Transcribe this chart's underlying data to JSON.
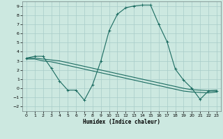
{
  "xlabel": "Humidex (Indice chaleur)",
  "background_color": "#cce8e0",
  "grid_color": "#a8ccc8",
  "line_color": "#1a6b60",
  "xlim": [
    -0.5,
    23.5
  ],
  "ylim": [
    -2.5,
    9.5
  ],
  "xticks": [
    0,
    1,
    2,
    3,
    4,
    5,
    6,
    7,
    8,
    9,
    10,
    11,
    12,
    13,
    14,
    15,
    16,
    17,
    18,
    19,
    20,
    21,
    22,
    23
  ],
  "yticks": [
    -2,
    -1,
    0,
    1,
    2,
    3,
    4,
    5,
    6,
    7,
    8,
    9
  ],
  "line1_x": [
    0,
    1,
    2,
    3,
    4,
    5,
    6,
    7,
    8,
    9,
    10,
    11,
    12,
    13,
    14,
    15,
    16,
    17,
    18,
    19,
    20,
    21,
    22,
    23
  ],
  "line1_y": [
    3.3,
    3.5,
    3.5,
    2.2,
    0.8,
    -0.2,
    -0.2,
    -1.3,
    0.4,
    3.0,
    6.3,
    8.1,
    8.8,
    9.0,
    9.1,
    9.1,
    7.0,
    5.1,
    2.1,
    0.9,
    0.0,
    -1.2,
    -0.3,
    -0.3
  ],
  "line2_x": [
    0,
    1,
    2,
    3,
    4,
    5,
    6,
    7,
    8,
    9,
    10,
    11,
    12,
    13,
    14,
    15,
    16,
    17,
    18,
    19,
    20,
    21,
    22,
    23
  ],
  "line2_y": [
    3.3,
    3.3,
    3.2,
    3.1,
    3.0,
    2.8,
    2.6,
    2.4,
    2.2,
    2.0,
    1.8,
    1.6,
    1.4,
    1.2,
    1.0,
    0.8,
    0.6,
    0.4,
    0.2,
    0.0,
    -0.15,
    -0.2,
    -0.25,
    -0.2
  ],
  "line3_x": [
    0,
    1,
    2,
    3,
    4,
    5,
    6,
    7,
    8,
    9,
    10,
    11,
    12,
    13,
    14,
    15,
    16,
    17,
    18,
    19,
    20,
    21,
    22,
    23
  ],
  "line3_y": [
    3.2,
    3.2,
    3.0,
    2.9,
    2.7,
    2.5,
    2.3,
    2.1,
    1.9,
    1.7,
    1.5,
    1.3,
    1.1,
    0.9,
    0.7,
    0.5,
    0.3,
    0.1,
    -0.1,
    -0.3,
    -0.4,
    -0.45,
    -0.5,
    -0.4
  ]
}
